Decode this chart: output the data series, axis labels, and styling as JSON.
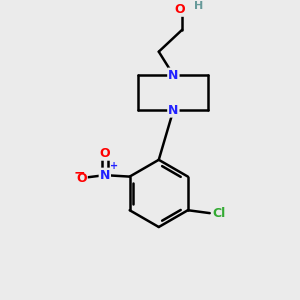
{
  "bg_color": "#ebebeb",
  "atom_colors": {
    "C": "#000000",
    "N": "#2222ff",
    "O": "#ff0000",
    "Cl": "#33aa33",
    "H": "#669999"
  },
  "bond_color": "#000000",
  "bond_width": 1.8,
  "fig_width": 3.0,
  "fig_height": 3.0,
  "dpi": 100
}
